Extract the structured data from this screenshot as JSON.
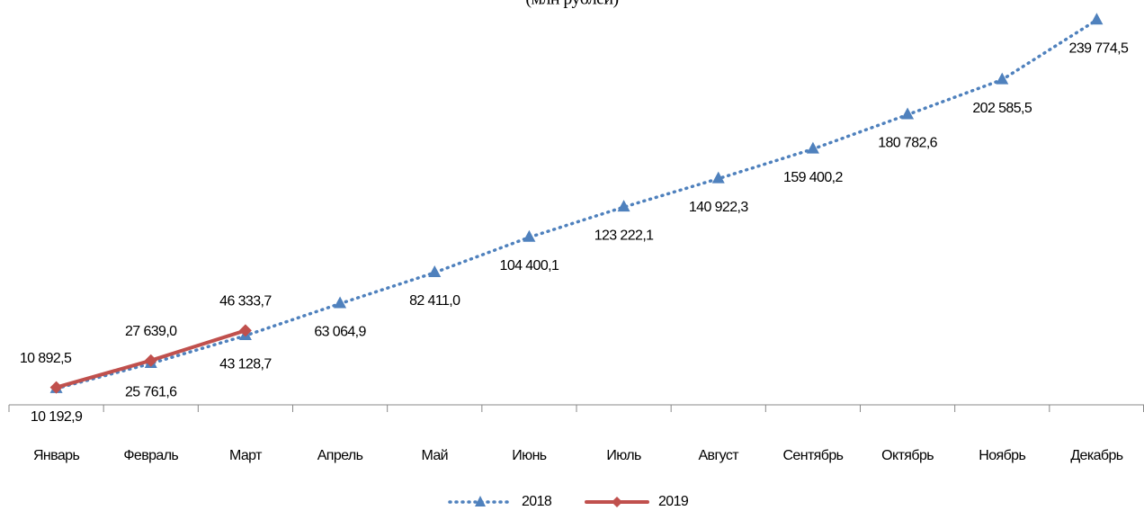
{
  "chart_data": {
    "type": "line",
    "title": "(млн рублей)",
    "categories": [
      "Январь",
      "Февраль",
      "Март",
      "Апрель",
      "Май",
      "Июнь",
      "Июль",
      "Август",
      "Сентябрь",
      "Октябрь",
      "Ноябрь",
      "Декабрь"
    ],
    "ylim": [
      0,
      250000
    ],
    "series": [
      {
        "name": "2018",
        "color": "#4f81bd",
        "values": [
          10192.9,
          25761.6,
          43128.7,
          63064.9,
          82411.0,
          104400.1,
          123222.1,
          140922.3,
          159400.2,
          180782.6,
          202585.5,
          239774.5
        ],
        "value_labels": [
          "10 192,9",
          "25 761,6",
          "43 128,7",
          "63 064,9",
          "82 411,0",
          "104 400,1",
          "123 222,1",
          "140 922,3",
          "159 400,2",
          "180 782,6",
          "202 585,5",
          "239 774,5"
        ]
      },
      {
        "name": "2019",
        "color": "#c0504d",
        "values": [
          10892.5,
          27639.0,
          46333.7,
          null,
          null,
          null,
          null,
          null,
          null,
          null,
          null,
          null
        ],
        "value_labels": [
          "10 892,5",
          "27 639,0",
          "46 333,7",
          null,
          null,
          null,
          null,
          null,
          null,
          null,
          null,
          null
        ]
      }
    ]
  }
}
